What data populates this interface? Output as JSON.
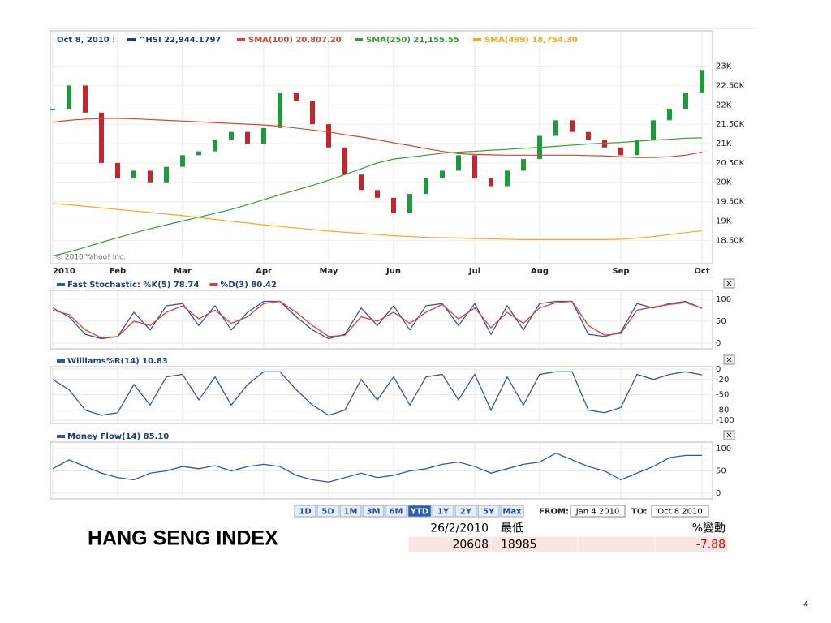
{
  "chart_data": [
    {
      "type": "line",
      "date_label": "Oct 8, 2010 :",
      "credit": "© 2010 Yahoo! Inc.",
      "categories": [
        "2010",
        null,
        null,
        null,
        "Feb",
        null,
        null,
        null,
        "Mar",
        null,
        null,
        null,
        null,
        "Apr",
        null,
        null,
        null,
        "May",
        null,
        null,
        null,
        "Jun",
        null,
        null,
        null,
        null,
        "Jul",
        null,
        null,
        null,
        "Aug",
        null,
        null,
        null,
        null,
        "Sep",
        null,
        null,
        null,
        null,
        "Oct"
      ],
      "candle_colors": {
        "up": "#1f9a3a",
        "down": "#c0282d"
      },
      "series": [
        {
          "name": "^HSI 22,944.1797",
          "color": "#1a3b8c",
          "style": "candles",
          "values": [
            21900,
            22500,
            21800,
            20500,
            20100,
            20300,
            20000,
            20400,
            20700,
            20800,
            21100,
            21300,
            21000,
            21400,
            22300,
            22100,
            21500,
            20900,
            20200,
            19800,
            19600,
            19200,
            19700,
            20100,
            20300,
            20700,
            20100,
            19900,
            20300,
            20600,
            21200,
            21600,
            21300,
            21100,
            20900,
            20700,
            21100,
            21600,
            21900,
            22300,
            22900
          ]
        },
        {
          "name": "SMA(100) 20,807.20",
          "color": "#d9432f",
          "values": [
            21550,
            21600,
            21630,
            21650,
            21650,
            21640,
            21620,
            21600,
            21580,
            21560,
            21540,
            21520,
            21500,
            21480,
            21450,
            21400,
            21350,
            21300,
            21230,
            21170,
            21100,
            21020,
            20950,
            20870,
            20800,
            20740,
            20720,
            20710,
            20700,
            20700,
            20700,
            20700,
            20700,
            20690,
            20680,
            20660,
            20640,
            20640,
            20660,
            20700,
            20780
          ]
        },
        {
          "name": "SMA(250) 21,155.55",
          "color": "#3a9a3a",
          "values": [
            18100,
            18200,
            18320,
            18450,
            18570,
            18690,
            18800,
            18900,
            19000,
            19100,
            19200,
            19300,
            19420,
            19550,
            19680,
            19800,
            19920,
            20050,
            20200,
            20350,
            20500,
            20600,
            20650,
            20700,
            20750,
            20780,
            20800,
            20830,
            20850,
            20880,
            20900,
            20930,
            20960,
            20990,
            21010,
            21030,
            21060,
            21090,
            21110,
            21140,
            21150
          ]
        },
        {
          "name": "SMA(499) 18,754.30",
          "color": "#f5a623",
          "values": [
            19450,
            19420,
            19380,
            19340,
            19300,
            19260,
            19220,
            19180,
            19140,
            19090,
            19040,
            18990,
            18950,
            18900,
            18860,
            18820,
            18780,
            18740,
            18710,
            18680,
            18650,
            18620,
            18600,
            18580,
            18570,
            18560,
            18550,
            18540,
            18530,
            18520,
            18520,
            18520,
            18520,
            18520,
            18520,
            18530,
            18560,
            18600,
            18650,
            18700,
            18750
          ]
        }
      ],
      "ylim": [
        17900,
        23870
      ],
      "yticks": [
        {
          "value": 23000,
          "label": "23K"
        },
        {
          "value": 22500,
          "label": "22.50K"
        },
        {
          "value": 22000,
          "label": "22K"
        },
        {
          "value": 21500,
          "label": "21.50K"
        },
        {
          "value": 21000,
          "label": "21K"
        },
        {
          "value": 20500,
          "label": "20.50K"
        },
        {
          "value": 20000,
          "label": "20K"
        },
        {
          "value": 19500,
          "label": "19.50K"
        },
        {
          "value": 19000,
          "label": "19K"
        },
        {
          "value": 18500,
          "label": "18.50K"
        }
      ],
      "grid": true
    },
    {
      "type": "line",
      "series": [
        {
          "name": "Fast Stochastic: %K(5) 78.74",
          "color": "#3556a8",
          "values": [
            80,
            60,
            20,
            10,
            15,
            70,
            30,
            85,
            90,
            40,
            85,
            30,
            70,
            95,
            95,
            60,
            30,
            10,
            20,
            80,
            40,
            85,
            30,
            85,
            90,
            40,
            90,
            20,
            85,
            30,
            90,
            95,
            95,
            20,
            15,
            25,
            90,
            80,
            90,
            95,
            79
          ]
        },
        {
          "name": "%D(3) 80.42",
          "color": "#d9432f",
          "values": [
            75,
            65,
            30,
            12,
            15,
            50,
            40,
            70,
            85,
            55,
            75,
            45,
            60,
            90,
            95,
            70,
            40,
            15,
            18,
            60,
            50,
            70,
            45,
            70,
            88,
            55,
            80,
            35,
            70,
            45,
            80,
            92,
            95,
            40,
            18,
            22,
            75,
            82,
            88,
            92,
            80
          ]
        }
      ],
      "ylim": [
        -13,
        120
      ],
      "yticks": [
        100,
        50,
        0
      ],
      "grid": true
    },
    {
      "type": "line",
      "series": [
        {
          "name": "Williams%R(14) 10.83",
          "color": "#3556a8",
          "values": [
            -20,
            -40,
            -80,
            -90,
            -85,
            -30,
            -70,
            -15,
            -10,
            -60,
            -15,
            -70,
            -30,
            -5,
            -5,
            -40,
            -70,
            -90,
            -80,
            -20,
            -60,
            -15,
            -70,
            -15,
            -10,
            -60,
            -10,
            -80,
            -15,
            -70,
            -10,
            -5,
            -5,
            -80,
            -85,
            -75,
            -10,
            -20,
            -10,
            -5,
            -11
          ]
        }
      ],
      "ylim": [
        -106,
        5
      ],
      "yticks": [
        0,
        -20,
        -50,
        -80,
        -100
      ],
      "grid": true
    },
    {
      "type": "line",
      "series": [
        {
          "name": "Money Flow(14) 85.10",
          "color": "#3556a8",
          "values": [
            55,
            75,
            60,
            45,
            35,
            30,
            45,
            50,
            60,
            55,
            62,
            50,
            60,
            65,
            60,
            40,
            30,
            25,
            35,
            45,
            35,
            40,
            50,
            55,
            65,
            70,
            60,
            45,
            55,
            65,
            70,
            90,
            75,
            60,
            50,
            30,
            45,
            60,
            80,
            85,
            85
          ]
        }
      ],
      "ylim": [
        -13,
        115
      ],
      "yticks": [
        100,
        50,
        0
      ],
      "grid": true
    }
  ],
  "close_icon": "×",
  "toolbar": {
    "ranges": [
      "1D",
      "5D",
      "1M",
      "3M",
      "6M",
      "YTD",
      "1Y",
      "2Y",
      "5Y",
      "Max"
    ],
    "active": "YTD",
    "from_label": "FROM:",
    "from": "Jan 4 2010",
    "to_label": "TO:",
    "to": "Oct 8 2010"
  },
  "slide_title": "HANG SENG INDEX",
  "table": {
    "header": [
      "26/2/2010",
      "最低",
      "%變動"
    ],
    "row": [
      "20608",
      "18985",
      "-7.88"
    ]
  },
  "page_number": "4"
}
